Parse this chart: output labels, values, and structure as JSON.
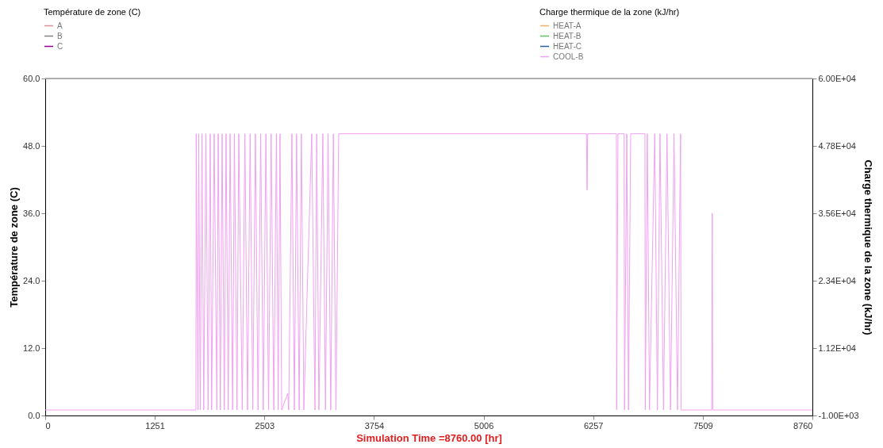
{
  "chart_data": {
    "type": "line",
    "xlabel": "Simulation Time =8760.00 [hr]",
    "ylabel": "Température de zone (C)",
    "y2label": "Charge thermique de la zone (kJ/hr)",
    "legend": "top",
    "line_style": "solid",
    "marker": "none",
    "grid": false,
    "xlim": [
      0,
      8760
    ],
    "xticks": [
      0,
      1251,
      2503,
      3754,
      5006,
      6257,
      7509,
      8760
    ],
    "ylim": [
      0,
      60
    ],
    "yticks": [
      {
        "value": 0,
        "label": "0.0"
      },
      {
        "value": 12,
        "label": "12.0"
      },
      {
        "value": 24,
        "label": "24.0"
      },
      {
        "value": 36,
        "label": "36.0"
      },
      {
        "value": 48,
        "label": "48.0"
      },
      {
        "value": 60,
        "label": "60.0"
      }
    ],
    "y2lim": [
      -1000,
      60000
    ],
    "y2ticks": [
      {
        "value": -1000,
        "label": "-1.00E+03"
      },
      {
        "value": 11200,
        "label": "1.12E+04"
      },
      {
        "value": 23400,
        "label": "2.34E+04"
      },
      {
        "value": 35600,
        "label": "3.56E+04"
      },
      {
        "value": 47800,
        "label": "4.78E+04"
      },
      {
        "value": 60000,
        "label": "6.00E+04"
      }
    ],
    "series": [
      {
        "name": "A",
        "color": "#e09090"
      },
      {
        "name": "B",
        "color": "#808080"
      },
      {
        "name": "C",
        "color": "#900090"
      },
      {
        "name": "HEAT-A",
        "color": "#f0b060",
        "axis": "y2"
      },
      {
        "name": "HEAT-B",
        "color": "#60c060",
        "axis": "y2"
      },
      {
        "name": "HEAT-C",
        "color": "#2060a0",
        "axis": "y2"
      },
      {
        "name": "COOL-B",
        "color": "#f0a0f0",
        "axis": "y2",
        "x": [
          0,
          1721,
          1724,
          1745,
          1752,
          1770,
          1790,
          1810,
          1835,
          1860,
          1884,
          1900,
          1929,
          1960,
          1975,
          2000,
          2020,
          2045,
          2065,
          2090,
          2111,
          2140,
          2160,
          2190,
          2210,
          2250,
          2280,
          2310,
          2340,
          2370,
          2400,
          2430,
          2460,
          2490,
          2520,
          2550,
          2580,
          2610,
          2640,
          2660,
          2681,
          2700,
          2770,
          2780,
          2817,
          2845,
          2870,
          2900,
          2925,
          2953,
          3043,
          3080,
          3100,
          3125,
          3170,
          3200,
          3230,
          3260,
          3290,
          3320,
          3351,
          6180,
          6187,
          6194,
          6522,
          6525,
          6540,
          6610,
          6615,
          6640,
          6660,
          6685,
          6848,
          6852,
          6875,
          6900,
          6960,
          6990,
          7020,
          7060,
          7100,
          7140,
          7180,
          7220,
          7255,
          7260,
          7610,
          7617,
          7622,
          8760
        ],
        "values": [
          0,
          0,
          50000,
          0,
          50000,
          0,
          50000,
          0,
          50000,
          0,
          50000,
          0,
          50000,
          0,
          50000,
          0,
          50000,
          0,
          50000,
          0,
          50000,
          0,
          50000,
          0,
          50000,
          0,
          50000,
          0,
          50000,
          0,
          50000,
          0,
          50000,
          0,
          50000,
          0,
          50000,
          0,
          50000,
          0,
          50000,
          0,
          3000,
          0,
          50000,
          0,
          50000,
          0,
          50000,
          0,
          50000,
          0,
          50000,
          0,
          50000,
          0,
          50000,
          0,
          50000,
          0,
          50000,
          50000,
          39800,
          50000,
          50000,
          0,
          50000,
          50000,
          0,
          50000,
          0,
          50000,
          50000,
          0,
          50000,
          0,
          50000,
          0,
          50000,
          0,
          50000,
          0,
          50000,
          0,
          50000,
          0,
          0,
          35600,
          0,
          0
        ]
      }
    ]
  }
}
